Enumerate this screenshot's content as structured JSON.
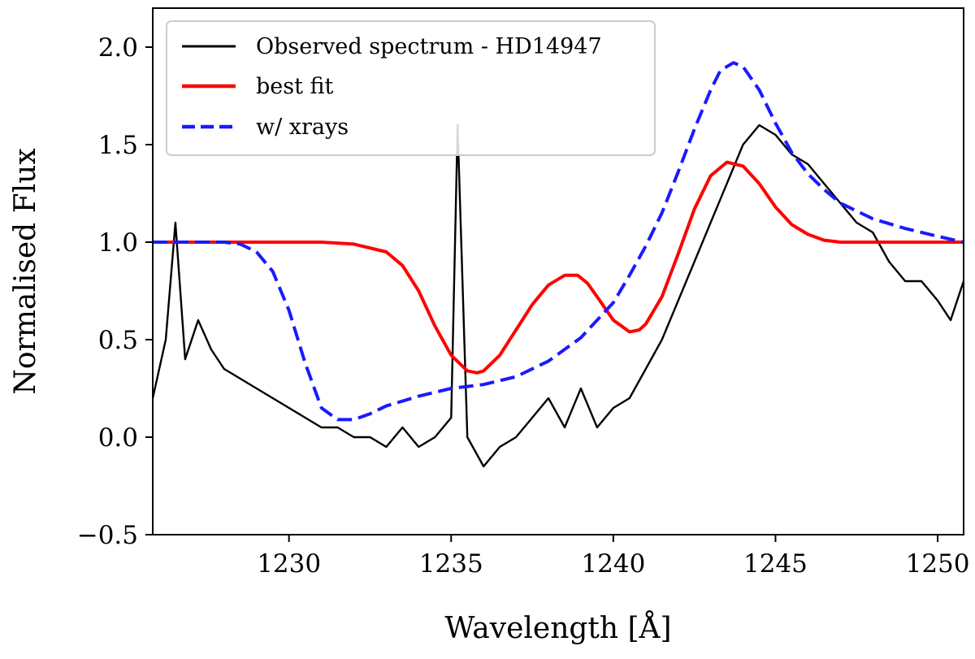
{
  "chart_data": {
    "type": "line",
    "title": "",
    "xlabel": "Wavelength [Å]",
    "ylabel": "Normalised Flux",
    "xlim": [
      1225.8,
      1250.8
    ],
    "ylim": [
      -0.5,
      2.2
    ],
    "grid": false,
    "legend_position": "top-left",
    "x_ticks": [
      1230,
      1235,
      1240,
      1245,
      1250
    ],
    "x_tick_labels": [
      "1230",
      "1235",
      "1240",
      "1245",
      "1250"
    ],
    "y_ticks": [
      -0.5,
      0.0,
      0.5,
      1.0,
      1.5,
      2.0
    ],
    "y_tick_labels": [
      "−0.5",
      "0.0",
      "0.5",
      "1.0",
      "1.5",
      "2.0"
    ],
    "series": [
      {
        "name": "Observed spectrum - HD14947",
        "color": "#000000",
        "style": "solid",
        "x": [
          1225.8,
          1226.2,
          1226.5,
          1226.8,
          1227.2,
          1227.6,
          1228.0,
          1228.5,
          1229.0,
          1229.5,
          1230.0,
          1230.5,
          1231.0,
          1231.5,
          1232.0,
          1232.5,
          1233.0,
          1233.5,
          1234.0,
          1234.5,
          1235.0,
          1235.2,
          1235.5,
          1236.0,
          1236.5,
          1237.0,
          1237.5,
          1238.0,
          1238.5,
          1239.0,
          1239.5,
          1240.0,
          1240.5,
          1241.0,
          1241.5,
          1242.0,
          1242.5,
          1243.0,
          1243.5,
          1244.0,
          1244.5,
          1245.0,
          1245.5,
          1246.0,
          1246.5,
          1247.0,
          1247.5,
          1248.0,
          1248.5,
          1249.0,
          1249.5,
          1250.0,
          1250.4,
          1250.8
        ],
        "y": [
          0.2,
          0.5,
          1.1,
          0.4,
          0.6,
          0.45,
          0.35,
          0.3,
          0.25,
          0.2,
          0.15,
          0.1,
          0.05,
          0.05,
          0.0,
          0.0,
          -0.05,
          0.05,
          -0.05,
          0.0,
          0.1,
          1.6,
          0.0,
          -0.15,
          -0.05,
          0.0,
          0.1,
          0.2,
          0.05,
          0.25,
          0.05,
          0.15,
          0.2,
          0.35,
          0.5,
          0.7,
          0.9,
          1.1,
          1.3,
          1.5,
          1.6,
          1.55,
          1.45,
          1.4,
          1.3,
          1.2,
          1.1,
          1.05,
          0.9,
          0.8,
          0.8,
          0.7,
          0.6,
          0.8
        ]
      },
      {
        "name": "best fit",
        "color": "#ff0000",
        "style": "solid",
        "x": [
          1225.8,
          1227.0,
          1228.0,
          1229.0,
          1230.0,
          1231.0,
          1232.0,
          1233.0,
          1233.5,
          1234.0,
          1234.5,
          1235.0,
          1235.5,
          1235.8,
          1236.0,
          1236.5,
          1237.0,
          1237.5,
          1238.0,
          1238.5,
          1238.9,
          1239.2,
          1239.5,
          1240.0,
          1240.5,
          1240.8,
          1241.0,
          1241.5,
          1242.0,
          1242.5,
          1243.0,
          1243.5,
          1244.0,
          1244.5,
          1245.0,
          1245.5,
          1246.0,
          1246.5,
          1247.0,
          1248.0,
          1249.0,
          1250.8
        ],
        "y": [
          1.0,
          1.0,
          1.0,
          1.0,
          1.0,
          1.0,
          0.99,
          0.95,
          0.88,
          0.75,
          0.57,
          0.42,
          0.34,
          0.33,
          0.34,
          0.42,
          0.55,
          0.68,
          0.78,
          0.83,
          0.83,
          0.79,
          0.72,
          0.6,
          0.54,
          0.55,
          0.58,
          0.72,
          0.94,
          1.17,
          1.34,
          1.41,
          1.39,
          1.3,
          1.18,
          1.09,
          1.04,
          1.01,
          1.0,
          1.0,
          1.0,
          1.0
        ]
      },
      {
        "name": "w/ xrays",
        "color": "#1a1aff",
        "style": "dashed",
        "x": [
          1225.8,
          1227.0,
          1228.0,
          1228.5,
          1229.0,
          1229.5,
          1230.0,
          1230.5,
          1231.0,
          1231.5,
          1232.0,
          1232.5,
          1233.0,
          1234.0,
          1235.0,
          1236.0,
          1237.0,
          1238.0,
          1239.0,
          1240.0,
          1240.5,
          1241.0,
          1241.5,
          1242.0,
          1242.5,
          1243.0,
          1243.3,
          1243.7,
          1244.0,
          1244.5,
          1245.0,
          1245.5,
          1246.0,
          1246.5,
          1247.0,
          1248.0,
          1249.0,
          1250.0,
          1250.8
        ],
        "y": [
          1.0,
          1.0,
          1.0,
          0.99,
          0.95,
          0.85,
          0.65,
          0.38,
          0.15,
          0.09,
          0.09,
          0.12,
          0.16,
          0.21,
          0.25,
          0.27,
          0.31,
          0.39,
          0.51,
          0.69,
          0.83,
          0.98,
          1.15,
          1.36,
          1.58,
          1.78,
          1.88,
          1.92,
          1.9,
          1.78,
          1.61,
          1.46,
          1.35,
          1.27,
          1.2,
          1.12,
          1.07,
          1.03,
          1.0
        ]
      }
    ]
  }
}
